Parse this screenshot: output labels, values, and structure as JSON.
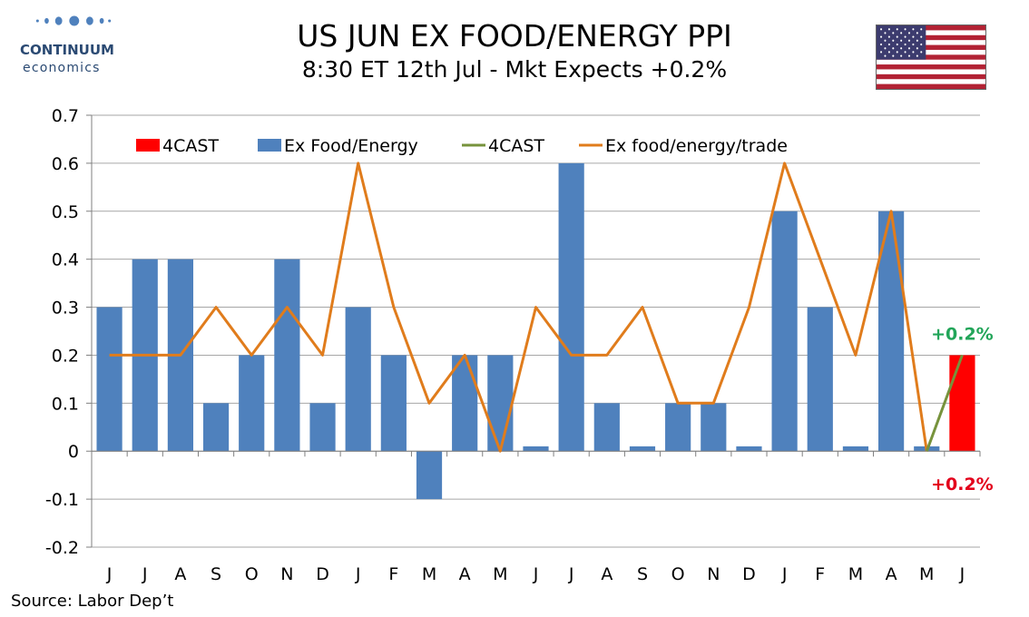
{
  "brand": {
    "name": "CONTINUUM",
    "sub": "economics"
  },
  "header": {
    "title": "US JUN EX FOOD/ENERGY PPI",
    "subtitle": "8:30 ET 12th Jul - Mkt Expects +0.2%"
  },
  "source": "Source: Labor Dep’t",
  "colors": {
    "forecast_bar": "#ff0000",
    "ex_food_energy_bar": "#4f81bd",
    "forecast_line": "#77933c",
    "ex_trade_line": "#e07c1c",
    "annotation_top": "#22a559",
    "annotation_bottom": "#e3001b",
    "brand": "#2b4a73"
  },
  "chart_data": {
    "type": "bar",
    "categories": [
      "J",
      "J",
      "A",
      "S",
      "O",
      "N",
      "D",
      "J",
      "F",
      "M",
      "A",
      "M",
      "J",
      "J",
      "A",
      "S",
      "O",
      "N",
      "D",
      "J",
      "F",
      "M",
      "A",
      "M",
      "J"
    ],
    "ylim": [
      -0.2,
      0.7
    ],
    "yticks": [
      "0.7",
      "0.6",
      "0.5",
      "0.4",
      "0.3",
      "0.2",
      "0.1",
      "0",
      "-0.1",
      "-0.2"
    ],
    "grid": true,
    "legend_placement": "top-left",
    "series": [
      {
        "name": "4CAST",
        "kind": "bar",
        "values": [
          null,
          null,
          null,
          null,
          null,
          null,
          null,
          null,
          null,
          null,
          null,
          null,
          null,
          null,
          null,
          null,
          null,
          null,
          null,
          null,
          null,
          null,
          null,
          null,
          0.2
        ]
      },
      {
        "name": "Ex Food/Energy",
        "kind": "bar",
        "values": [
          0.3,
          0.4,
          0.4,
          0.1,
          0.2,
          0.4,
          0.1,
          0.3,
          0.2,
          -0.1,
          0.2,
          0.2,
          0.01,
          0.6,
          0.1,
          0.01,
          0.1,
          0.1,
          0.01,
          0.5,
          0.3,
          0.01,
          0.5,
          0.01,
          null
        ]
      },
      {
        "name": "4CAST",
        "kind": "line",
        "values": [
          null,
          null,
          null,
          null,
          null,
          null,
          null,
          null,
          null,
          null,
          null,
          null,
          null,
          null,
          null,
          null,
          null,
          null,
          null,
          null,
          null,
          null,
          null,
          0.0,
          0.2
        ]
      },
      {
        "name": "Ex food/energy/trade",
        "kind": "line",
        "values": [
          0.2,
          0.2,
          0.2,
          0.3,
          0.2,
          0.3,
          0.2,
          0.6,
          0.3,
          0.1,
          0.2,
          0.0,
          0.3,
          0.2,
          0.2,
          0.3,
          0.1,
          0.1,
          0.3,
          0.6,
          0.4,
          0.2,
          0.5,
          0.0,
          null
        ]
      }
    ],
    "annotations": [
      {
        "text": "+0.2%",
        "color_key": "annotation_top",
        "anchor": "above-last"
      },
      {
        "text": "+0.2%",
        "color_key": "annotation_bottom",
        "anchor": "below-last"
      }
    ]
  }
}
